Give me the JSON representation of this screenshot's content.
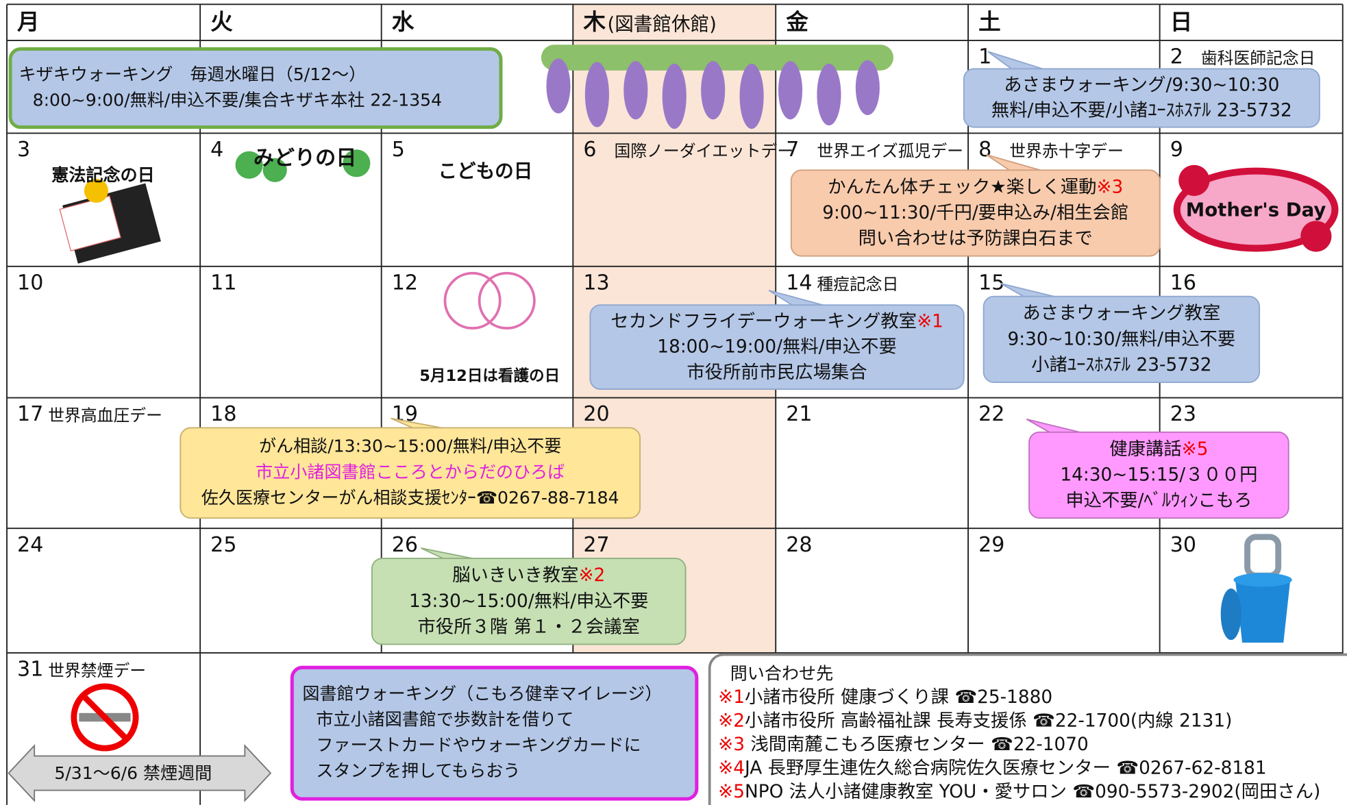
{
  "header": {
    "weekdays": [
      "月",
      "火",
      "水",
      "木",
      "金",
      "土",
      "日"
    ],
    "thursday_note": "(図書館休館)"
  },
  "days": [
    {
      "day": 1
    },
    {
      "day": 2,
      "note": "歯科医師記念日"
    },
    {
      "day": 3
    },
    {
      "day": 4
    },
    {
      "day": 5
    },
    {
      "day": 6,
      "note": "国際ノーダイエットデー"
    },
    {
      "day": 7,
      "note": "世界エイズ孤児デー"
    },
    {
      "day": 8,
      "note": "世界赤十字デー"
    },
    {
      "day": 9
    },
    {
      "day": 10
    },
    {
      "day": 11
    },
    {
      "day": 12
    },
    {
      "day": 13
    },
    {
      "day": 14,
      "note": "種痘記念日"
    },
    {
      "day": 15
    },
    {
      "day": 16
    },
    {
      "day": 17,
      "note": "世界高血圧デー"
    },
    {
      "day": 18
    },
    {
      "day": 19
    },
    {
      "day": 20
    },
    {
      "day": 21
    },
    {
      "day": 22
    },
    {
      "day": 23
    },
    {
      "day": 24
    },
    {
      "day": 25
    },
    {
      "day": 26
    },
    {
      "day": 27
    },
    {
      "day": 28
    },
    {
      "day": 29
    },
    {
      "day": 30
    },
    {
      "day": 31,
      "note": "世界禁煙デー"
    }
  ],
  "illustrations": [
    "憲法記念の日",
    "みどりの日",
    "こどもの日",
    "Mother's Day",
    "5月12日は看護の日"
  ],
  "events": [
    {
      "lines": [
        {
          "text": "キザキウォーキング　毎週水曜日（5/12～）"
        },
        {
          "text": "8:00~9:00/無料/申込不要/集合キザキ本社 22-1354"
        }
      ]
    },
    {
      "lines": [
        {
          "text": "あさまウォーキング/9:30~10:30"
        },
        {
          "text": "無料/申込不要/小諸ﾕｰｽﾎｽﾃﾙ 23-5732"
        }
      ]
    },
    {
      "lines": [
        {
          "text": "かんたん体チェック★楽しく運動",
          "mark": "※3"
        },
        {
          "text": "9:00~11:30/千円/要申込み/相生会館"
        },
        {
          "text": "問い合わせは予防課白石まで"
        }
      ]
    },
    {
      "lines": [
        {
          "text": "セカンドフライデーウォーキング教室",
          "mark": "※1"
        },
        {
          "text": "18:00~19:00/無料/申込不要"
        },
        {
          "text": "市役所前市民広場集合"
        }
      ]
    },
    {
      "lines": [
        {
          "text": "あさまウォーキング教室"
        },
        {
          "text": "9:30~10:30/無料/申込不要"
        },
        {
          "text": "小諸ﾕｰｽﾎｽﾃﾙ 23-5732"
        }
      ]
    },
    {
      "lines": [
        {
          "text": "がん相談/13:30~15:00/無料/申込不要"
        },
        {
          "text": "市立小諸図書館こころとからだのひろば",
          "color": "#e020e0"
        },
        {
          "text": "佐久医療センターがん相談支援ｾﾝﾀｰ☎0267-88-7184"
        }
      ]
    },
    {
      "lines": [
        {
          "text": "健康講話",
          "mark": "※5"
        },
        {
          "text": "14:30~15:15/３００円"
        },
        {
          "text": "申込不要/ﾍﾞﾙｳｨﾝこもろ"
        }
      ]
    },
    {
      "lines": [
        {
          "text": "脳いきいき教室",
          "mark": "※2"
        },
        {
          "text": "13:30~15:00/無料/申込不要"
        },
        {
          "text": "市役所３階 第１・２会議室"
        }
      ]
    },
    {
      "lines": [
        {
          "text": "図書館ウォーキング（こもろ健幸マイレージ）"
        },
        {
          "text": "市立小諸図書館で歩数計を借りて"
        },
        {
          "text": "ファーストカードやウォーキングカードに"
        },
        {
          "text": "スタンプを押してもらおう"
        }
      ]
    }
  ],
  "banner": "5/31～6/6 禁煙週間",
  "contacts": {
    "title": "問い合わせ先",
    "items": [
      {
        "mark": "※1",
        "text": "小諸市役所  健康づくり課  ☎25-1880"
      },
      {
        "mark": "※2",
        "text": "小諸市役所  高齢福祉課  長寿支援係 ☎22-1700(内線 2131)"
      },
      {
        "mark": "※3",
        "text": " 浅間南麓こもろ医療センター ☎22-1070"
      },
      {
        "mark": "※4",
        "text": "JA 長野厚生連佐久総合病院佐久医療センター ☎0267-62-8181"
      },
      {
        "mark": "※5",
        "text": "NPO 法人小諸健康教室 YOU・愛サロン ☎090-5573-2902(岡田さん)"
      }
    ]
  }
}
